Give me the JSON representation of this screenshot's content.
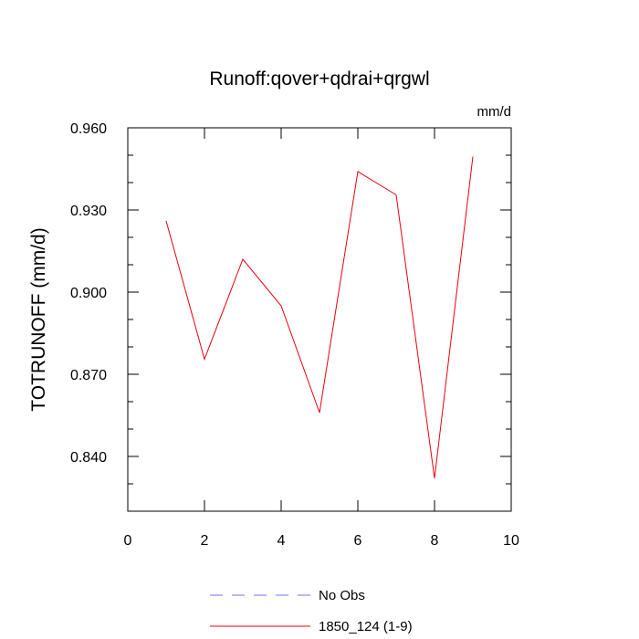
{
  "chart_data": {
    "type": "line",
    "title": "Runoff:qover+qdrai+qrgwl",
    "units_label": "mm/d",
    "xlabel": "",
    "ylabel": "TOTRUNOFF  (mm/d)",
    "xlim": [
      0,
      10
    ],
    "ylim": [
      0.82,
      0.96
    ],
    "x_ticks": [
      0,
      2,
      4,
      6,
      8,
      10
    ],
    "x_tick_labels": [
      "0",
      "2",
      "4",
      "6",
      "8",
      "10"
    ],
    "y_ticks": [
      0.84,
      0.87,
      0.9,
      0.93,
      0.96
    ],
    "y_tick_labels": [
      "0.840",
      "0.870",
      "0.900",
      "0.930",
      "0.960"
    ],
    "grid": false,
    "legend_position": "bottom",
    "series": [
      {
        "name": "1850_124 (1-9)",
        "color": "#e8000b",
        "dash": "solid",
        "x": [
          1,
          2,
          3,
          4,
          5,
          6,
          7,
          8,
          9
        ],
        "values": [
          0.926,
          0.8755,
          0.912,
          0.895,
          0.856,
          0.944,
          0.9355,
          0.832,
          0.9495
        ]
      }
    ],
    "legend": [
      {
        "name": "No Obs",
        "color": "#7070ff",
        "dash": "dashed"
      },
      {
        "name": "1850_124 (1-9)",
        "color": "#e8000b",
        "dash": "solid"
      }
    ]
  }
}
